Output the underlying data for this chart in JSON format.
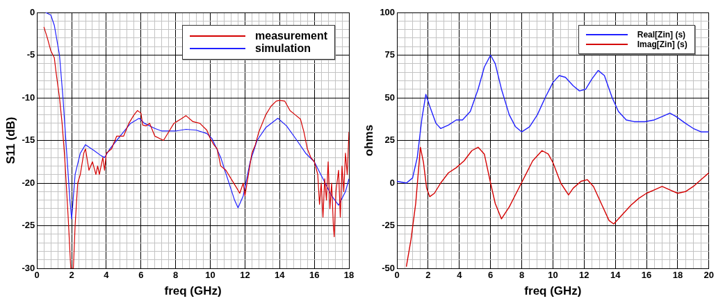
{
  "chart_data": [
    {
      "type": "line",
      "xlabel": "freq (GHz)",
      "ylabel": "S11 (dB)",
      "legend": "top right",
      "grid": true,
      "marker": "none",
      "line_style": "solid",
      "xlim": [
        0,
        18
      ],
      "ylim": [
        -30,
        0
      ],
      "xticks": [
        0,
        {
          "value": 0.4,
          "label": null
        },
        {
          "value": 0.8,
          "label": null
        },
        {
          "value": 1.2,
          "label": null
        },
        {
          "value": 1.6,
          "label": null
        },
        2,
        {
          "value": 2.4,
          "label": null
        },
        {
          "value": 2.8,
          "label": null
        },
        {
          "value": 3.2,
          "label": null
        },
        {
          "value": 3.6,
          "label": null
        },
        4,
        {
          "value": 4.4,
          "label": null
        },
        {
          "value": 4.8,
          "label": null
        },
        {
          "value": 5.2,
          "label": null
        },
        {
          "value": 5.6,
          "label": null
        },
        6,
        {
          "value": 6.4,
          "label": null
        },
        {
          "value": 6.8,
          "label": null
        },
        {
          "value": 7.2,
          "label": null
        },
        {
          "value": 7.6,
          "label": null
        },
        8,
        {
          "value": 8.4,
          "label": null
        },
        {
          "value": 8.8,
          "label": null
        },
        {
          "value": 9.2,
          "label": null
        },
        {
          "value": 9.6,
          "label": null
        },
        10,
        {
          "value": 10.4,
          "label": null
        },
        {
          "value": 10.8,
          "label": null
        },
        {
          "value": 11.2,
          "label": null
        },
        {
          "value": 11.6,
          "label": null
        },
        12,
        {
          "value": 12.4,
          "label": null
        },
        {
          "value": 12.8,
          "label": null
        },
        {
          "value": 13.2,
          "label": null
        },
        {
          "value": 13.6,
          "label": null
        },
        14,
        {
          "value": 14.4,
          "label": null
        },
        {
          "value": 14.8,
          "label": null
        },
        {
          "value": 15.2,
          "label": null
        },
        {
          "value": 15.6,
          "label": null
        },
        16,
        {
          "value": 16.4,
          "label": null
        },
        {
          "value": 16.8,
          "label": null
        },
        {
          "value": 17.2,
          "label": null
        },
        {
          "value": 17.6,
          "label": null
        },
        18
      ],
      "yticks": [
        -30,
        {
          "value": -29,
          "label": null
        },
        {
          "value": -28,
          "label": null
        },
        {
          "value": -27,
          "label": null
        },
        {
          "value": -26,
          "label": null
        },
        -25,
        {
          "value": -24,
          "label": null
        },
        {
          "value": -23,
          "label": null
        },
        {
          "value": -22,
          "label": null
        },
        {
          "value": -21,
          "label": null
        },
        -20,
        {
          "value": -19,
          "label": null
        },
        {
          "value": -18,
          "label": null
        },
        {
          "value": -17,
          "label": null
        },
        {
          "value": -16,
          "label": null
        },
        -15,
        {
          "value": -14,
          "label": null
        },
        {
          "value": -13,
          "label": null
        },
        {
          "value": -12,
          "label": null
        },
        {
          "value": -11,
          "label": null
        },
        -10,
        {
          "value": -9,
          "label": null
        },
        {
          "value": -8,
          "label": null
        },
        {
          "value": -7,
          "label": null
        },
        {
          "value": -6,
          "label": null
        },
        -5,
        {
          "value": -4,
          "label": null
        },
        {
          "value": -3,
          "label": null
        },
        {
          "value": -2,
          "label": null
        },
        {
          "value": -1,
          "label": null
        },
        0
      ],
      "series": [
        {
          "name": "measurement",
          "color": "#d40000",
          "x": [
            0.4,
            0.6,
            0.8,
            1.0,
            1.1,
            1.3,
            1.45,
            1.6,
            1.8,
            1.95,
            2.1,
            2.2,
            2.35,
            2.5,
            2.7,
            2.8,
            3.0,
            3.2,
            3.4,
            3.5,
            3.6,
            3.8,
            3.9,
            4.0,
            4.3,
            4.6,
            5.0,
            5.3,
            5.6,
            5.8,
            6.0,
            6.1,
            6.3,
            6.5,
            6.8,
            7.1,
            7.3,
            7.6,
            7.9,
            8.3,
            8.6,
            9.0,
            9.4,
            9.8,
            10.0,
            10.2,
            10.4,
            10.6,
            10.9,
            11.2,
            11.5,
            11.7,
            11.9,
            12.0,
            12.2,
            12.4,
            12.6,
            12.8,
            13.0,
            13.2,
            13.5,
            13.8,
            14.0,
            14.3,
            14.6,
            14.9,
            15.2,
            15.4,
            15.6,
            15.8,
            16.0,
            16.2,
            16.3,
            16.4,
            16.5,
            16.6,
            16.7,
            16.8,
            16.9,
            17.0,
            17.1,
            17.15,
            17.25,
            17.4,
            17.5,
            17.6,
            17.7,
            17.8,
            17.9,
            18.0
          ],
          "values": [
            -1.7,
            -3,
            -4.5,
            -5.3,
            -7,
            -10,
            -13,
            -17,
            -24,
            -30,
            -30,
            -25,
            -20,
            -19,
            -16.5,
            -16,
            -18.5,
            -17.5,
            -19,
            -18,
            -19,
            -17,
            -18.5,
            -16.5,
            -16,
            -14.5,
            -14.5,
            -13,
            -12,
            -11.5,
            -11.8,
            -13.2,
            -13.3,
            -13,
            -14.5,
            -14.8,
            -15,
            -14,
            -13,
            -12.5,
            -12.1,
            -12.8,
            -13,
            -13.8,
            -14.8,
            -15.5,
            -16,
            -18,
            -18.5,
            -19.5,
            -20.5,
            -21.2,
            -20,
            -21.5,
            -19,
            -16.5,
            -15.5,
            -14,
            -13,
            -12,
            -11,
            -10.4,
            -10.3,
            -10.4,
            -11.5,
            -12,
            -12.5,
            -14,
            -16,
            -17,
            -17.5,
            -19,
            -22.5,
            -20,
            -24,
            -19.5,
            -22,
            -17.5,
            -23,
            -20,
            -25,
            -26.3,
            -21,
            -18.5,
            -24,
            -18,
            -21,
            -16.5,
            -19,
            -14
          ]
        },
        {
          "name": "simulation",
          "color": "#2020ff",
          "x": [
            0.5,
            0.8,
            1.0,
            1.3,
            1.5,
            1.7,
            1.9,
            2.0,
            2.2,
            2.5,
            2.8,
            3.3,
            3.7,
            3.9,
            4.2,
            4.6,
            5.0,
            5.4,
            5.9,
            6.2,
            6.8,
            7.2,
            8.0,
            8.6,
            9.2,
            9.8,
            10.1,
            10.6,
            11.0,
            11.4,
            11.6,
            11.9,
            12.3,
            12.7,
            13.2,
            13.9,
            14.4,
            15.0,
            15.5,
            16.0,
            16.5,
            17.0,
            17.4,
            17.8,
            18.0
          ],
          "values": [
            0,
            -0.3,
            -1.5,
            -5,
            -10,
            -16,
            -22,
            -24.2,
            -19,
            -16.5,
            -15.5,
            -16.2,
            -16.8,
            -17,
            -16,
            -15,
            -14,
            -13,
            -12.4,
            -13,
            -13.6,
            -13.9,
            -13.9,
            -13.7,
            -13.8,
            -14.2,
            -14.8,
            -17,
            -19.5,
            -22,
            -22.9,
            -21.5,
            -17.5,
            -15,
            -13.5,
            -12.4,
            -13.3,
            -15,
            -16.5,
            -17.5,
            -19.5,
            -21.5,
            -22.6,
            -21,
            -19.5
          ]
        }
      ]
    },
    {
      "type": "line",
      "xlabel": "freq (GHz)",
      "ylabel": "ohms",
      "legend": "top right",
      "grid": true,
      "marker": "none",
      "line_style": "solid",
      "xlim": [
        0,
        20
      ],
      "ylim": [
        -50,
        100
      ],
      "xticks": [
        0,
        {
          "value": 0.5,
          "label": null
        },
        {
          "value": 1,
          "label": null
        },
        {
          "value": 1.5,
          "label": null
        },
        2,
        {
          "value": 2.5,
          "label": null
        },
        {
          "value": 3,
          "label": null
        },
        {
          "value": 3.5,
          "label": null
        },
        4,
        {
          "value": 4.5,
          "label": null
        },
        {
          "value": 5,
          "label": null
        },
        {
          "value": 5.5,
          "label": null
        },
        6,
        {
          "value": 6.5,
          "label": null
        },
        {
          "value": 7,
          "label": null
        },
        {
          "value": 7.5,
          "label": null
        },
        8,
        {
          "value": 8.5,
          "label": null
        },
        {
          "value": 9,
          "label": null
        },
        {
          "value": 9.5,
          "label": null
        },
        10,
        {
          "value": 10.5,
          "label": null
        },
        {
          "value": 11,
          "label": null
        },
        {
          "value": 11.5,
          "label": null
        },
        12,
        {
          "value": 12.5,
          "label": null
        },
        {
          "value": 13,
          "label": null
        },
        {
          "value": 13.5,
          "label": null
        },
        14,
        {
          "value": 14.5,
          "label": null
        },
        {
          "value": 15,
          "label": null
        },
        {
          "value": 15.5,
          "label": null
        },
        16,
        {
          "value": 16.5,
          "label": null
        },
        {
          "value": 17,
          "label": null
        },
        {
          "value": 17.5,
          "label": null
        },
        18,
        {
          "value": 18.5,
          "label": null
        },
        {
          "value": 19,
          "label": null
        },
        {
          "value": 19.5,
          "label": null
        },
        20
      ],
      "yticks": [
        -50,
        {
          "value": -45,
          "label": null
        },
        {
          "value": -40,
          "label": null
        },
        {
          "value": -35,
          "label": null
        },
        {
          "value": -30,
          "label": null
        },
        -25,
        {
          "value": -20,
          "label": null
        },
        {
          "value": -15,
          "label": null
        },
        {
          "value": -10,
          "label": null
        },
        {
          "value": -5,
          "label": null
        },
        0,
        {
          "value": 5,
          "label": null
        },
        {
          "value": 10,
          "label": null
        },
        {
          "value": 15,
          "label": null
        },
        {
          "value": 20,
          "label": null
        },
        25,
        {
          "value": 30,
          "label": null
        },
        {
          "value": 35,
          "label": null
        },
        {
          "value": 40,
          "label": null
        },
        {
          "value": 45,
          "label": null
        },
        50,
        {
          "value": 55,
          "label": null
        },
        {
          "value": 60,
          "label": null
        },
        {
          "value": 65,
          "label": null
        },
        {
          "value": 70,
          "label": null
        },
        75,
        {
          "value": 80,
          "label": null
        },
        {
          "value": 85,
          "label": null
        },
        {
          "value": 90,
          "label": null
        },
        {
          "value": 95,
          "label": null
        },
        100
      ],
      "series": [
        {
          "name": "Real[Zin] (s)",
          "color": "#2020ff",
          "x": [
            0,
            0.6,
            1.0,
            1.3,
            1.6,
            1.85,
            2.1,
            2.5,
            2.8,
            3.3,
            3.8,
            4.2,
            4.7,
            5.2,
            5.6,
            6.0,
            6.3,
            6.7,
            7.2,
            7.6,
            8.0,
            8.5,
            9.0,
            9.5,
            10.0,
            10.4,
            10.8,
            11.3,
            11.7,
            12.1,
            12.5,
            12.9,
            13.3,
            13.8,
            14.2,
            14.7,
            15.2,
            15.9,
            16.5,
            17.0,
            17.5,
            17.9,
            18.5,
            19.0,
            19.5,
            20
          ],
          "values": [
            1,
            0,
            3,
            15,
            38,
            52,
            45,
            35,
            32,
            34,
            37,
            37,
            42,
            55,
            68,
            75,
            70,
            55,
            40,
            33,
            30,
            33,
            40,
            50,
            59,
            63,
            62,
            57,
            54,
            55,
            61,
            66,
            63,
            50,
            42,
            37,
            36,
            36,
            37,
            39,
            41,
            39,
            35,
            32,
            30,
            30
          ]
        },
        {
          "name": "Imag[Zin] (s)",
          "color": "#d40000",
          "x": [
            0.6,
            0.9,
            1.2,
            1.5,
            1.7,
            1.9,
            2.1,
            2.4,
            2.8,
            3.3,
            3.8,
            4.3,
            4.8,
            5.2,
            5.6,
            6.0,
            6.3,
            6.7,
            7.2,
            7.7,
            8.2,
            8.7,
            9.3,
            9.7,
            10.0,
            10.5,
            11.0,
            11.3,
            11.8,
            12.2,
            12.6,
            13.2,
            13.6,
            13.9,
            14.4,
            15.0,
            15.5,
            16.0,
            16.5,
            17.0,
            17.5,
            18.0,
            18.5,
            19.0,
            19.5,
            20
          ],
          "values": [
            -49,
            -33,
            -12,
            21,
            12,
            -3,
            -8,
            -6,
            0,
            6,
            9,
            13,
            19,
            21,
            17,
            0,
            -12,
            -21,
            -14,
            -5,
            4,
            13,
            19,
            17,
            12,
            0,
            -7,
            -3,
            1,
            2,
            -2,
            -14,
            -22,
            -24,
            -19,
            -13,
            -9,
            -6,
            -4,
            -2,
            -4,
            -6,
            -5,
            -2,
            2,
            6
          ]
        }
      ]
    }
  ]
}
